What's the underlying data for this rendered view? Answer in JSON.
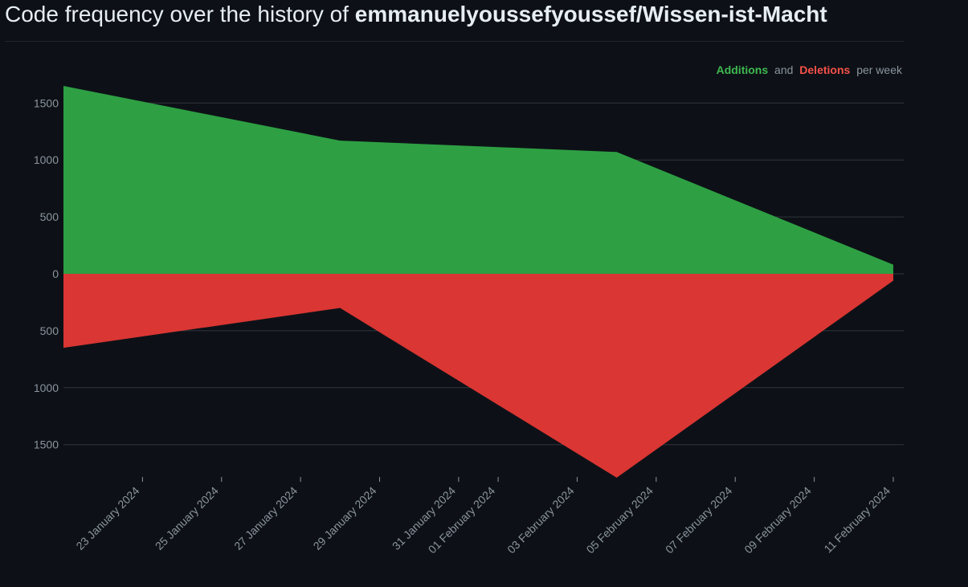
{
  "header": {
    "title_prefix": "Code frequency over the history of",
    "repo": "emmanuelyoussefyoussef/Wissen-ist-Macht"
  },
  "legend": {
    "additions": "Additions",
    "and": "and",
    "deletions": "Deletions",
    "per_week": "per week",
    "placement": "top-right"
  },
  "colors": {
    "background": "#0d1117",
    "additions": "#2ea043",
    "deletions": "#da3633",
    "additions_text": "#3fb950",
    "deletions_text": "#f85149",
    "grid": "#30363d",
    "tick_text": "#8b949e"
  },
  "chart_data": {
    "type": "area",
    "x_axis_type": "date",
    "x_tick_labels": [
      "23 January 2024",
      "25 January 2024",
      "27 January 2024",
      "29 January 2024",
      "31 January 2024",
      "01 February 2024",
      "03 February 2024",
      "05 February 2024",
      "07 February 2024",
      "09 February 2024",
      "11 February 2024"
    ],
    "x_ticks": [
      "2024-01-23",
      "2024-01-25",
      "2024-01-27",
      "2024-01-29",
      "2024-01-31",
      "2024-02-01",
      "2024-02-03",
      "2024-02-05",
      "2024-02-07",
      "2024-02-09",
      "2024-02-11"
    ],
    "x_range": [
      "2024-01-21",
      "2024-02-11"
    ],
    "y_ticks": [
      1500,
      1000,
      500,
      0,
      -500,
      -1000,
      -1500
    ],
    "y_tick_labels": [
      "1500",
      "1000",
      "500",
      "0",
      "500",
      "1000",
      "1500"
    ],
    "ylim": [
      -1800,
      1650
    ],
    "grid": true,
    "series": [
      {
        "name": "Additions",
        "x": [
          "2024-01-21",
          "2024-01-28",
          "2024-02-04",
          "2024-02-11"
        ],
        "values": [
          1650,
          1170,
          1070,
          80
        ]
      },
      {
        "name": "Deletions",
        "x": [
          "2024-01-21",
          "2024-01-28",
          "2024-02-04",
          "2024-02-11"
        ],
        "values": [
          -650,
          -300,
          -1790,
          -60
        ]
      }
    ]
  }
}
